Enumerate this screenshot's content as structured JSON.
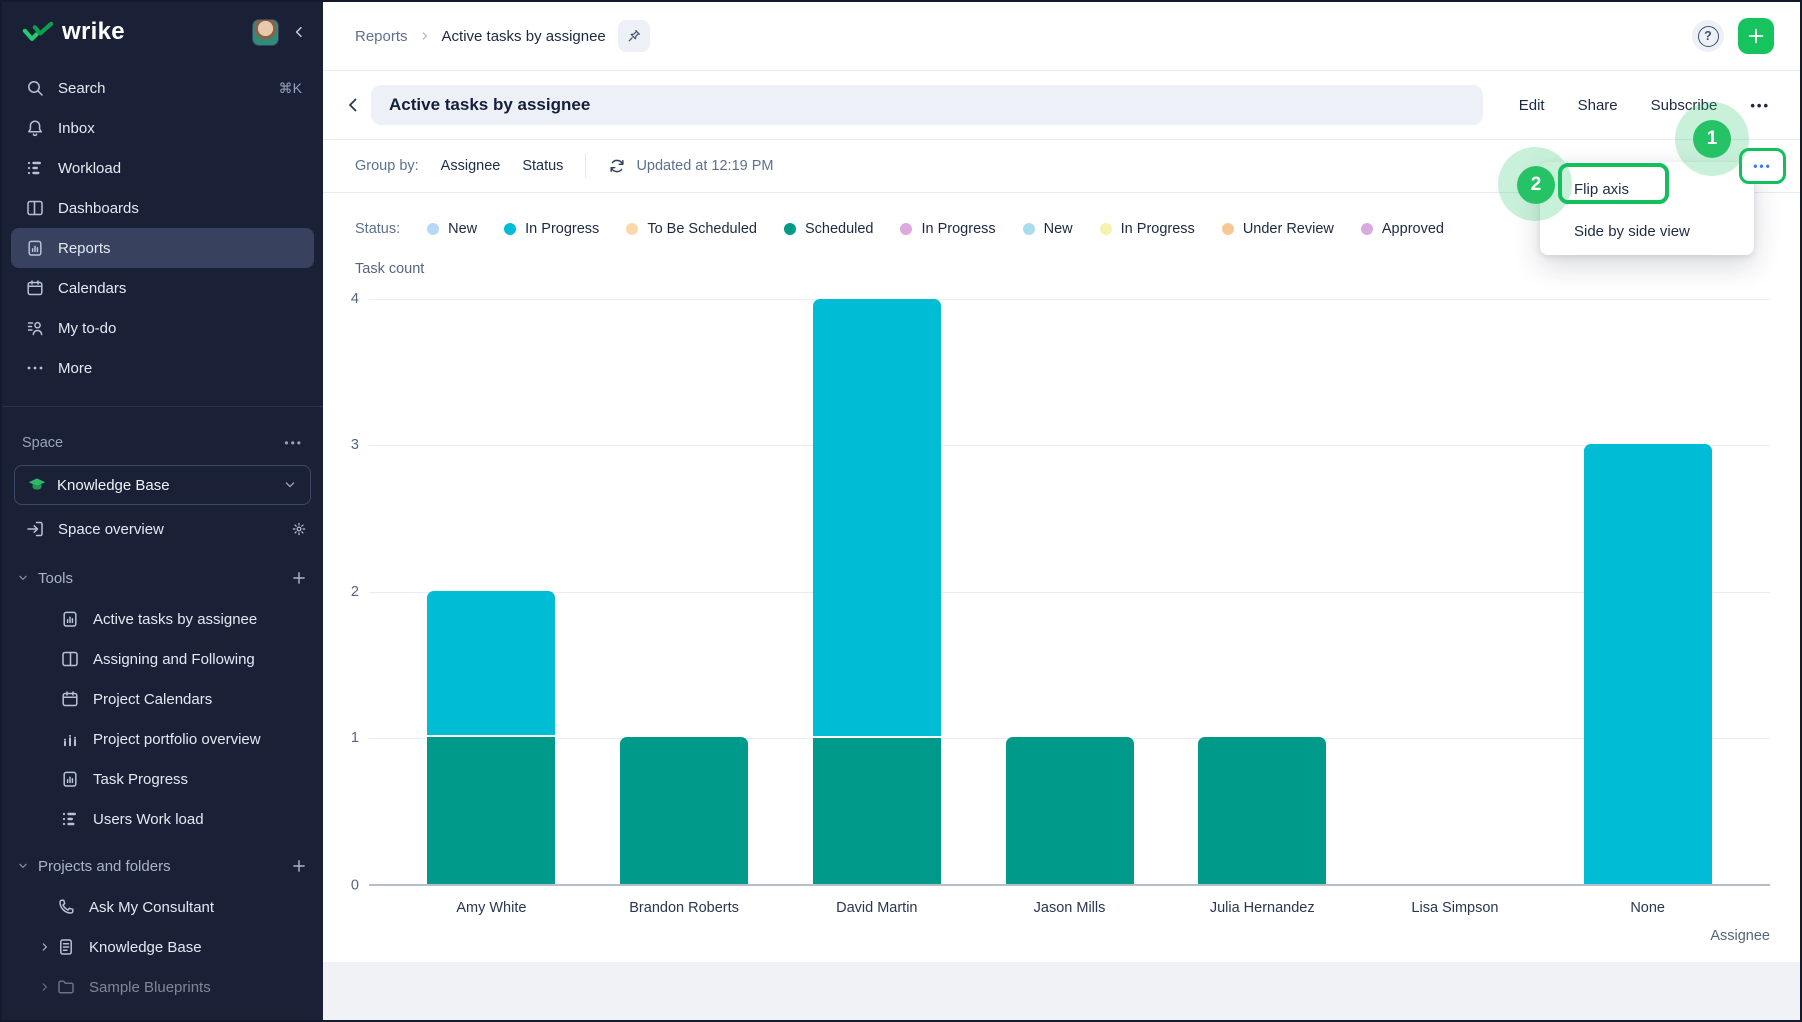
{
  "brand": {
    "logo_text": "wrike"
  },
  "sidebar": {
    "nav": [
      {
        "label": "Search",
        "icon": "search",
        "shortcut": "⌘K"
      },
      {
        "label": "Inbox",
        "icon": "bell"
      },
      {
        "label": "Workload",
        "icon": "workload"
      },
      {
        "label": "Dashboards",
        "icon": "dashboards"
      },
      {
        "label": "Reports",
        "icon": "reports",
        "active": true
      },
      {
        "label": "Calendars",
        "icon": "calendar"
      },
      {
        "label": "My to-do",
        "icon": "todo"
      },
      {
        "label": "More",
        "icon": "more"
      }
    ],
    "space": {
      "section_label": "Space",
      "selector_label": "Knowledge Base",
      "overview_label": "Space overview"
    },
    "tools": {
      "section_label": "Tools",
      "items": [
        {
          "label": "Active tasks by assignee",
          "icon": "reports"
        },
        {
          "label": "Assigning and Following",
          "icon": "columns"
        },
        {
          "label": "Project Calendars",
          "icon": "calendar"
        },
        {
          "label": "Project portfolio overview",
          "icon": "portfolio"
        },
        {
          "label": "Task Progress",
          "icon": "reports"
        },
        {
          "label": "Users Work load",
          "icon": "workload"
        }
      ]
    },
    "projects": {
      "section_label": "Projects and folders",
      "items": [
        {
          "label": "Ask My Consultant",
          "icon": "phone",
          "chevron": false,
          "dimmed": false
        },
        {
          "label": "Knowledge Base",
          "icon": "doc",
          "chevron": true,
          "dimmed": false
        },
        {
          "label": "Sample Blueprints",
          "icon": "folder",
          "chevron": true,
          "dimmed": true
        }
      ]
    }
  },
  "header": {
    "breadcrumb": {
      "section": "Reports",
      "current": "Active tasks by assignee"
    },
    "title": "Active tasks by assignee",
    "actions": [
      "Edit",
      "Share",
      "Subscribe"
    ]
  },
  "toolbar": {
    "group_by_label": "Group by:",
    "group_by_options": [
      "Assignee",
      "Status"
    ],
    "updated_text": "Updated at 12:19 PM"
  },
  "menu": {
    "items": [
      "Flip axis",
      "Side by side view"
    ]
  },
  "annotations": {
    "step1": "1",
    "step2": "2"
  },
  "legend": {
    "label": "Status:",
    "items": [
      {
        "label": "New",
        "color": "#b7d8f6"
      },
      {
        "label": "In Progress",
        "color": "#00bcd4"
      },
      {
        "label": "To Be Scheduled",
        "color": "#fbd8a8"
      },
      {
        "label": "Scheduled",
        "color": "#009a8b"
      },
      {
        "label": "In Progress",
        "color": "#dcaade"
      },
      {
        "label": "New",
        "color": "#a9dced"
      },
      {
        "label": "In Progress",
        "color": "#f6f1ac"
      },
      {
        "label": "Under Review",
        "color": "#f7c895"
      },
      {
        "label": "Approved",
        "color": "#d8abe0"
      }
    ]
  },
  "chart_data": {
    "type": "bar",
    "stacked": true,
    "title": "Active tasks by assignee",
    "ylabel": "Task count",
    "xlabel": "Assignee",
    "categories": [
      "Amy White",
      "Brandon Roberts",
      "David Martin",
      "Jason Mills",
      "Julia Hernandez",
      "Lisa Simpson",
      "None"
    ],
    "series": [
      {
        "name": "Scheduled",
        "color": "#009a8b",
        "values": [
          1,
          1,
          1,
          1,
          1,
          0,
          0
        ]
      },
      {
        "name": "In Progress",
        "color": "#00bcd4",
        "values": [
          1,
          0,
          3,
          0,
          0,
          0,
          3
        ]
      }
    ],
    "totals": [
      2,
      1,
      4,
      1,
      1,
      0,
      3
    ],
    "ylim": [
      0,
      4
    ],
    "yticks": [
      0,
      1,
      2,
      3,
      4
    ],
    "grid": true,
    "legend_position": "top"
  }
}
